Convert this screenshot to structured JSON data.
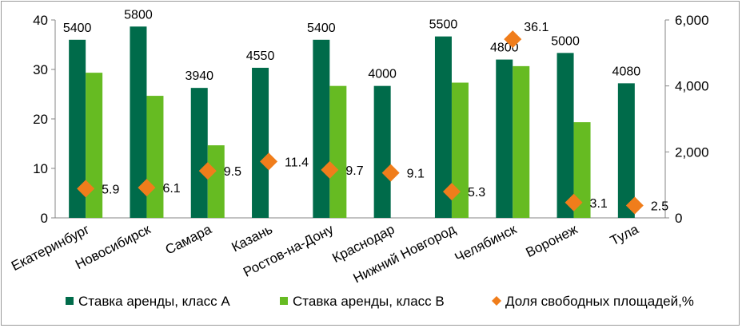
{
  "chart_data": {
    "type": "bar",
    "categories": [
      "Екатеринбург",
      "Новосибирск",
      "Самара",
      "Казань",
      "Ростов-на-Дону",
      "Краснодар",
      "Нижний Новгород",
      "Челябинск",
      "Воронеж",
      "Тула"
    ],
    "series": [
      {
        "name": "Ставка аренды, класс А",
        "axis": "right",
        "color": "#006b4a",
        "values": [
          5400,
          5800,
          3940,
          4550,
          5400,
          4000,
          5500,
          4800,
          5000,
          4080
        ],
        "labels": [
          "5400",
          "5800",
          "3940",
          "4550",
          "5400",
          "4000",
          "5500",
          "4800",
          "5000",
          "4080"
        ]
      },
      {
        "name": "Ставка аренды, класс В",
        "axis": "right",
        "color": "#66bb22",
        "values": [
          4400,
          3700,
          2200,
          null,
          4000,
          null,
          4100,
          4600,
          2900,
          null
        ]
      },
      {
        "name": "Доля свободных площадей,%",
        "axis": "left",
        "type": "scatter",
        "marker": "diamond",
        "color": "#f07d1b",
        "values": [
          5.9,
          6.1,
          9.5,
          11.4,
          9.7,
          9.1,
          5.3,
          36.1,
          3.1,
          2.5
        ],
        "labels": [
          "5.9",
          "6.1",
          "9.5",
          "11.4",
          "9.7",
          "9.1",
          "5.3",
          "36.1",
          "3.1",
          "2.5"
        ]
      }
    ],
    "y_left": {
      "ylim": [
        0,
        40
      ],
      "ticks": [
        0,
        10,
        20,
        30,
        40
      ],
      "tick_labels": [
        "0",
        "10",
        "20",
        "30",
        "40"
      ]
    },
    "y_right": {
      "ylim": [
        0,
        6000
      ],
      "ticks": [
        0,
        2000,
        4000,
        6000
      ],
      "tick_labels": [
        "0",
        "2,000",
        "4,000",
        "6,000"
      ]
    },
    "grid": false,
    "legend_position": "bottom"
  }
}
